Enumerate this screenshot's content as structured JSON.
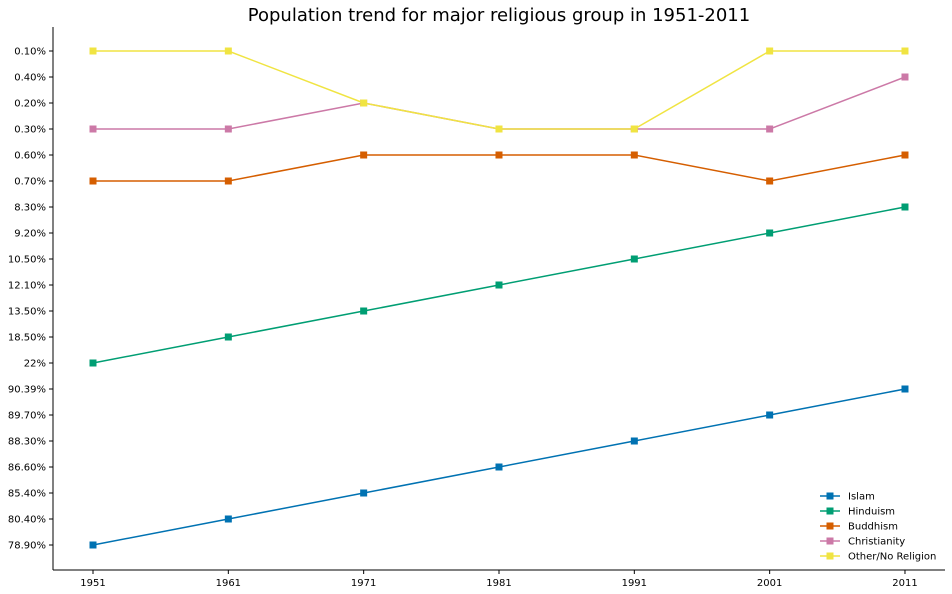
{
  "chart_data": {
    "type": "line",
    "title": "Population trend for major religious group in 1951-2011",
    "xlabel": "",
    "ylabel": "",
    "x": [
      "1951",
      "1961",
      "1971",
      "1981",
      "1991",
      "2001",
      "2011"
    ],
    "y_categories": [
      "78.90%",
      "80.40%",
      "85.40%",
      "86.60%",
      "88.30%",
      "89.70%",
      "90.39%",
      "22%",
      "18.50%",
      "13.50%",
      "12.10%",
      "10.50%",
      "9.20%",
      "8.30%",
      "0.70%",
      "0.60%",
      "0.30%",
      "0.20%",
      "0.40%",
      "0.10%"
    ],
    "y_axis_note": "categorical axis",
    "grid": false,
    "legend_position": "lower-right",
    "series": [
      {
        "name": "Islam",
        "color": "#0072B2",
        "values": [
          "78.90%",
          "80.40%",
          "85.40%",
          "86.60%",
          "88.30%",
          "89.70%",
          "90.39%"
        ]
      },
      {
        "name": "Hinduism",
        "color": "#009E73",
        "values": [
          "22%",
          "18.50%",
          "13.50%",
          "12.10%",
          "10.50%",
          "9.20%",
          "8.30%"
        ]
      },
      {
        "name": "Buddhism",
        "color": "#D55E00",
        "values": [
          "0.70%",
          "0.70%",
          "0.60%",
          "0.60%",
          "0.60%",
          "0.70%",
          "0.60%"
        ]
      },
      {
        "name": "Christianity",
        "color": "#CC79A7",
        "values": [
          "0.30%",
          "0.30%",
          "0.20%",
          "0.30%",
          "0.30%",
          "0.30%",
          "0.40%"
        ]
      },
      {
        "name": "Other/No Religion",
        "color": "#F0E442",
        "values": [
          "0.10%",
          "0.10%",
          "0.20%",
          "0.30%",
          "0.30%",
          "0.10%",
          "0.10%"
        ]
      }
    ]
  }
}
